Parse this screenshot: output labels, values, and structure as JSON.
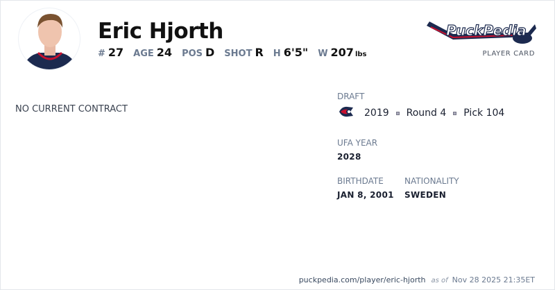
{
  "player": {
    "name": "Eric Hjorth",
    "number_label": "#",
    "number": "27",
    "age_label": "AGE",
    "age": "24",
    "pos_label": "POS",
    "pos": "D",
    "shot_label": "SHOT",
    "shot": "R",
    "height_label": "H",
    "height": "6'5\"",
    "weight_label": "W",
    "weight": "207",
    "weight_unit": "lbs"
  },
  "brand": {
    "logo_text": "PuckPedia",
    "subtitle": "PLAYER CARD"
  },
  "contract": {
    "status": "NO CURRENT CONTRACT"
  },
  "draft": {
    "label": "DRAFT",
    "team_icon": "blue-jackets-logo",
    "year": "2019",
    "round": "Round 4",
    "pick": "Pick 104"
  },
  "ufa": {
    "label": "UFA YEAR",
    "value": "2028"
  },
  "birthdate": {
    "label": "BIRTHDATE",
    "value": "JAN 8, 2001"
  },
  "nationality": {
    "label": "NATIONALITY",
    "value": "SWEDEN"
  },
  "footer": {
    "url": "puckpedia.com/player/eric-hjorth",
    "as_of": "as of",
    "timestamp": "Nov 28 2025 21:35ET"
  },
  "colors": {
    "navy": "#1c2a4f",
    "red": "#c8102e",
    "label": "#6b7a90"
  }
}
